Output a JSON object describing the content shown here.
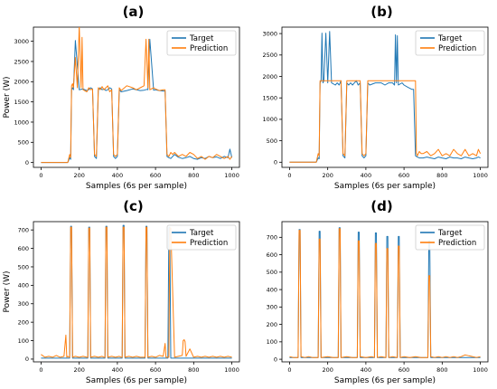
{
  "colors": {
    "target": "#1f77b4",
    "prediction": "#ff7f0e",
    "axis": "#000000"
  },
  "chart_data": [
    {
      "type": "line",
      "title": "(a)",
      "xlabel": "Samples (6s per sample)",
      "ylabel": "Power (W)",
      "xlim": [
        -40,
        1040
      ],
      "ylim": [
        -120,
        3350
      ],
      "xticks": [
        0,
        200,
        400,
        600,
        800,
        1000
      ],
      "yticks": [
        0,
        500,
        1000,
        1500,
        2000,
        2500,
        3000
      ],
      "legend": "top-right",
      "series": [
        {
          "name": "Target",
          "x": [
            0,
            140,
            150,
            155,
            160,
            165,
            170,
            180,
            200,
            220,
            240,
            250,
            260,
            270,
            280,
            290,
            300,
            310,
            320,
            330,
            340,
            350,
            360,
            370,
            380,
            390,
            400,
            410,
            420,
            450,
            480,
            500,
            520,
            540,
            555,
            560,
            570,
            590,
            600,
            620,
            640,
            650,
            660,
            670,
            680,
            690,
            700,
            720,
            740,
            760,
            780,
            800,
            820,
            840,
            860,
            880,
            900,
            920,
            940,
            960,
            980,
            990,
            1000
          ],
          "values": [
            0,
            0,
            120,
            80,
            1800,
            1850,
            1800,
            3020,
            1800,
            1820,
            1780,
            1800,
            1850,
            1820,
            150,
            100,
            1800,
            1850,
            1800,
            1820,
            1780,
            1800,
            1850,
            1820,
            150,
            100,
            150,
            1800,
            1750,
            1780,
            1820,
            1800,
            1780,
            1790,
            1810,
            1800,
            3050,
            1790,
            1800,
            1780,
            1770,
            1770,
            150,
            120,
            100,
            150,
            200,
            130,
            100,
            120,
            150,
            100,
            80,
            120,
            100,
            150,
            120,
            140,
            100,
            150,
            120,
            330,
            120
          ]
        },
        {
          "name": "Prediction",
          "x": [
            0,
            140,
            150,
            155,
            160,
            165,
            170,
            180,
            190,
            200,
            210,
            215,
            220,
            240,
            250,
            260,
            270,
            280,
            290,
            300,
            310,
            320,
            330,
            340,
            350,
            360,
            370,
            380,
            390,
            400,
            410,
            420,
            450,
            480,
            500,
            520,
            540,
            550,
            560,
            565,
            570,
            590,
            600,
            620,
            640,
            650,
            660,
            670,
            680,
            690,
            700,
            720,
            740,
            760,
            780,
            800,
            820,
            840,
            860,
            880,
            900,
            920,
            940,
            960,
            980,
            990,
            1000
          ],
          "values": [
            0,
            0,
            200,
            120,
            1900,
            1950,
            1850,
            2600,
            1850,
            3380,
            1850,
            3100,
            1800,
            1750,
            1850,
            1800,
            1820,
            200,
            150,
            1850,
            1800,
            1880,
            1800,
            1850,
            1900,
            1750,
            1800,
            200,
            150,
            200,
            1850,
            1780,
            1900,
            1850,
            1800,
            1850,
            1900,
            3050,
            1850,
            3050,
            1800,
            1850,
            1820,
            1780,
            1800,
            1800,
            200,
            150,
            250,
            200,
            250,
            150,
            200,
            150,
            250,
            200,
            100,
            150,
            80,
            150,
            120,
            200,
            150,
            100,
            150,
            80,
            150
          ]
        }
      ]
    },
    {
      "type": "line",
      "title": "(b)",
      "xlabel": "Samples (6s per sample)",
      "ylabel": "",
      "xlim": [
        -40,
        1040
      ],
      "ylim": [
        -120,
        3150
      ],
      "xticks": [
        0,
        200,
        400,
        600,
        800,
        1000
      ],
      "yticks": [
        0,
        500,
        1000,
        1500,
        2000,
        2500,
        3000
      ],
      "legend": "top-right",
      "series": [
        {
          "name": "Target",
          "x": [
            0,
            140,
            150,
            155,
            160,
            165,
            170,
            175,
            180,
            190,
            200,
            210,
            220,
            240,
            250,
            260,
            270,
            280,
            290,
            300,
            310,
            320,
            330,
            340,
            350,
            360,
            370,
            380,
            390,
            400,
            410,
            420,
            450,
            480,
            500,
            520,
            540,
            550,
            555,
            560,
            565,
            570,
            590,
            600,
            620,
            640,
            650,
            660,
            670,
            680,
            700,
            720,
            740,
            760,
            780,
            800,
            820,
            840,
            860,
            880,
            900,
            920,
            940,
            960,
            980,
            990,
            1000
          ],
          "values": [
            0,
            0,
            100,
            80,
            1850,
            1900,
            3010,
            1850,
            1900,
            3010,
            1850,
            3050,
            1850,
            1800,
            1850,
            1800,
            1900,
            150,
            100,
            1850,
            1800,
            1850,
            1800,
            1850,
            1900,
            1800,
            1850,
            150,
            100,
            150,
            1850,
            1800,
            1850,
            1850,
            1800,
            1850,
            1850,
            1800,
            2970,
            1850,
            2950,
            1800,
            1850,
            1800,
            1750,
            1700,
            1700,
            150,
            120,
            100,
            100,
            120,
            100,
            80,
            120,
            100,
            80,
            120,
            100,
            100,
            80,
            120,
            100,
            80,
            100,
            120,
            100
          ]
        },
        {
          "name": "Prediction",
          "x": [
            0,
            140,
            150,
            155,
            160,
            170,
            180,
            190,
            200,
            210,
            220,
            240,
            250,
            260,
            270,
            280,
            290,
            300,
            310,
            320,
            330,
            340,
            350,
            360,
            370,
            380,
            390,
            400,
            410,
            420,
            450,
            480,
            500,
            520,
            540,
            550,
            560,
            570,
            590,
            600,
            620,
            640,
            660,
            665,
            670,
            680,
            690,
            700,
            720,
            740,
            760,
            780,
            800,
            820,
            840,
            860,
            880,
            900,
            920,
            940,
            960,
            980,
            990,
            1000
          ],
          "values": [
            0,
            0,
            200,
            150,
            1900,
            1900,
            1900,
            1900,
            1900,
            1900,
            1900,
            1900,
            1900,
            1900,
            1900,
            200,
            150,
            1900,
            1900,
            1900,
            1900,
            1900,
            1900,
            1900,
            1900,
            200,
            150,
            200,
            1900,
            1900,
            1900,
            1900,
            1900,
            1900,
            1900,
            1900,
            1900,
            1900,
            1900,
            1900,
            1900,
            1900,
            1900,
            200,
            150,
            250,
            200,
            200,
            250,
            150,
            200,
            300,
            150,
            200,
            150,
            300,
            200,
            150,
            300,
            150,
            200,
            150,
            300,
            200
          ]
        }
      ]
    },
    {
      "type": "line",
      "title": "(c)",
      "xlabel": "Samples (6s per sample)",
      "ylabel": "Power (W)",
      "xlim": [
        -40,
        1040
      ],
      "ylim": [
        -15,
        745
      ],
      "xticks": [
        0,
        200,
        400,
        600,
        800,
        1000
      ],
      "yticks": [
        0,
        100,
        200,
        300,
        400,
        500,
        600,
        700
      ],
      "legend": "top-right",
      "series": [
        {
          "name": "Target",
          "x": [
            0,
            140,
            150,
            155,
            160,
            165,
            240,
            245,
            250,
            255,
            260,
            330,
            335,
            340,
            345,
            350,
            420,
            425,
            430,
            435,
            440,
            540,
            545,
            550,
            555,
            560,
            660,
            665,
            670,
            675,
            680,
            1000
          ],
          "values": [
            5,
            5,
            5,
            720,
            720,
            5,
            5,
            5,
            715,
            715,
            5,
            5,
            5,
            720,
            720,
            5,
            5,
            5,
            725,
            725,
            5,
            5,
            5,
            720,
            720,
            5,
            5,
            5,
            715,
            715,
            5,
            5
          ]
        },
        {
          "name": "Prediction",
          "x": [
            0,
            20,
            40,
            60,
            80,
            100,
            120,
            130,
            135,
            140,
            150,
            155,
            160,
            165,
            180,
            200,
            220,
            240,
            245,
            250,
            255,
            260,
            280,
            300,
            320,
            330,
            335,
            340,
            345,
            350,
            370,
            390,
            410,
            420,
            425,
            430,
            435,
            440,
            460,
            480,
            500,
            520,
            540,
            545,
            550,
            555,
            560,
            580,
            600,
            620,
            640,
            650,
            655,
            660,
            670,
            675,
            680,
            700,
            720,
            740,
            745,
            750,
            755,
            760,
            780,
            800,
            820,
            840,
            860,
            880,
            900,
            920,
            940,
            960,
            980,
            1000
          ],
          "values": [
            25,
            10,
            15,
            10,
            20,
            10,
            15,
            130,
            10,
            15,
            10,
            715,
            715,
            10,
            15,
            10,
            15,
            10,
            10,
            710,
            710,
            10,
            15,
            10,
            15,
            10,
            10,
            715,
            715,
            10,
            15,
            10,
            15,
            10,
            10,
            715,
            715,
            10,
            15,
            10,
            15,
            10,
            10,
            10,
            715,
            715,
            10,
            15,
            10,
            20,
            15,
            85,
            10,
            10,
            10,
            710,
            710,
            10,
            15,
            20,
            100,
            105,
            95,
            15,
            55,
            10,
            15,
            10,
            15,
            10,
            15,
            10,
            15,
            10,
            15,
            10
          ]
        }
      ]
    },
    {
      "type": "line",
      "title": "(d)",
      "xlabel": "Samples (6s per sample)",
      "ylabel": "",
      "xlim": [
        -40,
        1040
      ],
      "ylim": [
        -15,
        790
      ],
      "xticks": [
        0,
        200,
        400,
        600,
        800,
        1000
      ],
      "yticks": [
        0,
        100,
        200,
        300,
        400,
        500,
        600,
        700
      ],
      "legend": "top-right",
      "series": [
        {
          "name": "Target",
          "x": [
            0,
            45,
            50,
            55,
            60,
            150,
            155,
            160,
            165,
            255,
            260,
            265,
            270,
            355,
            360,
            365,
            370,
            445,
            450,
            455,
            460,
            505,
            510,
            515,
            520,
            565,
            570,
            575,
            580,
            725,
            730,
            735,
            740,
            1000
          ],
          "values": [
            10,
            10,
            745,
            745,
            10,
            10,
            735,
            735,
            10,
            10,
            755,
            755,
            10,
            10,
            730,
            730,
            10,
            10,
            725,
            725,
            10,
            10,
            705,
            705,
            10,
            10,
            705,
            705,
            10,
            10,
            680,
            680,
            10,
            10
          ]
        },
        {
          "name": "Prediction",
          "x": [
            0,
            20,
            45,
            50,
            55,
            60,
            80,
            100,
            120,
            150,
            155,
            160,
            165,
            200,
            230,
            255,
            260,
            265,
            270,
            300,
            330,
            355,
            360,
            365,
            370,
            400,
            430,
            445,
            450,
            455,
            460,
            480,
            505,
            510,
            515,
            520,
            540,
            565,
            570,
            575,
            580,
            600,
            630,
            660,
            690,
            725,
            730,
            735,
            740,
            760,
            780,
            800,
            820,
            840,
            860,
            880,
            900,
            920,
            940,
            960,
            980,
            1000
          ],
          "values": [
            15,
            10,
            10,
            740,
            740,
            15,
            10,
            15,
            10,
            10,
            690,
            690,
            10,
            15,
            10,
            10,
            750,
            750,
            10,
            15,
            10,
            10,
            680,
            680,
            15,
            10,
            15,
            10,
            665,
            665,
            10,
            15,
            10,
            635,
            635,
            10,
            15,
            10,
            650,
            650,
            10,
            15,
            10,
            15,
            10,
            10,
            480,
            480,
            15,
            10,
            15,
            10,
            15,
            10,
            15,
            10,
            15,
            25,
            20,
            15,
            10,
            15
          ]
        }
      ]
    }
  ]
}
